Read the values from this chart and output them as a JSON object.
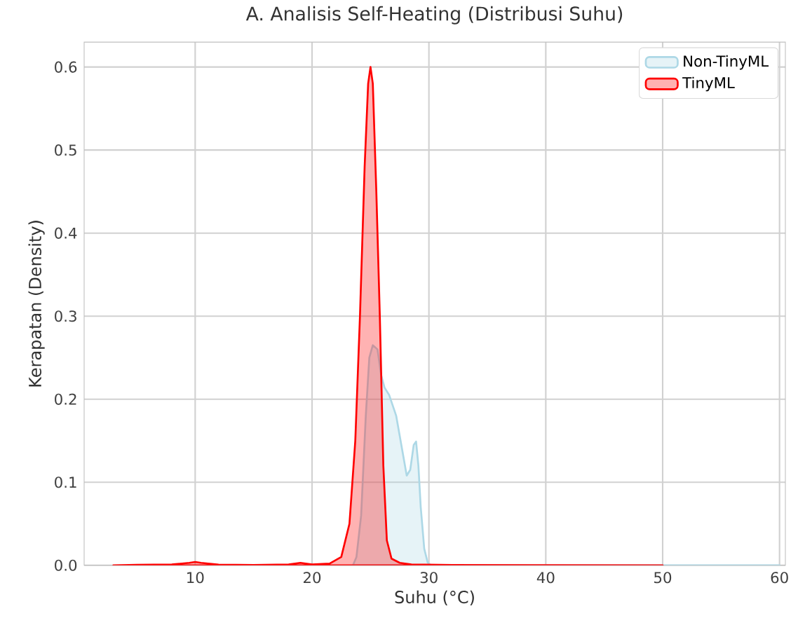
{
  "chart_data": {
    "type": "area",
    "title": "A. Analisis Self-Heating (Distribusi Suhu)",
    "xlabel": "Suhu (°C)",
    "ylabel": "Kerapatan (Density)",
    "series": [
      {
        "name": "Non-TinyML",
        "color": "#add8e6",
        "x": [
          23.5,
          23.8,
          24.2,
          24.6,
          24.9,
          25.2,
          25.6,
          25.9,
          26.2,
          26.6,
          27.2,
          27.7,
          28.1,
          28.4,
          28.7,
          28.9,
          29.1,
          29.3,
          29.6,
          29.9,
          30.2,
          35,
          45,
          60
        ],
        "values": [
          0,
          0.01,
          0.06,
          0.18,
          0.25,
          0.265,
          0.26,
          0.23,
          0.214,
          0.205,
          0.18,
          0.14,
          0.108,
          0.115,
          0.145,
          0.149,
          0.12,
          0.07,
          0.02,
          0.003,
          0,
          0,
          0,
          0
        ]
      },
      {
        "name": "TinyML",
        "color": "#ff0000",
        "x": [
          3,
          5,
          8,
          9.5,
          10,
          10.5,
          12,
          15,
          18,
          19,
          20,
          21.5,
          22.5,
          23.2,
          23.7,
          24.1,
          24.5,
          24.8,
          25.0,
          25.2,
          25.5,
          25.8,
          26.1,
          26.4,
          26.8,
          27.5,
          28.5,
          32,
          40,
          50
        ],
        "values": [
          0,
          0.0005,
          0.001,
          0.003,
          0.004,
          0.003,
          0.0008,
          0.0003,
          0.001,
          0.003,
          0.001,
          0.002,
          0.01,
          0.05,
          0.15,
          0.3,
          0.48,
          0.58,
          0.6,
          0.58,
          0.45,
          0.3,
          0.12,
          0.03,
          0.008,
          0.003,
          0.001,
          0.0003,
          0.0001,
          0
        ]
      }
    ],
    "xlim": [
      0.5,
      60.5
    ],
    "xticks": [
      10,
      20,
      30,
      40,
      50,
      60
    ],
    "ylim": [
      0,
      0.63
    ],
    "yticks": [
      {
        "value": 0,
        "label": "0.0"
      },
      {
        "value": 0.1,
        "label": "0.1"
      },
      {
        "value": 0.2,
        "label": "0.2"
      },
      {
        "value": 0.3,
        "label": "0.3"
      },
      {
        "value": 0.4,
        "label": "0.4"
      },
      {
        "value": 0.5,
        "label": "0.5"
      },
      {
        "value": 0.6,
        "label": "0.6"
      }
    ],
    "grid": true,
    "legend": "top right"
  }
}
